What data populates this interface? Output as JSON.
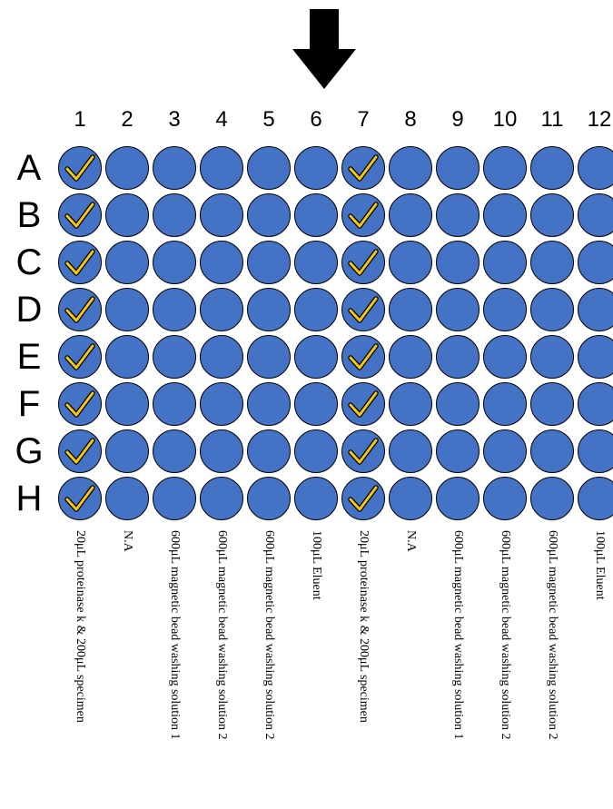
{
  "plate": {
    "columns": [
      "1",
      "2",
      "3",
      "4",
      "5",
      "6",
      "7",
      "8",
      "9",
      "10",
      "11",
      "12"
    ],
    "rows": [
      "A",
      "B",
      "C",
      "D",
      "E",
      "F",
      "G",
      "H"
    ],
    "checked_columns": [
      "1",
      "7"
    ],
    "column_labels": [
      "20μL proteinase k & 200μL specimen",
      "N.A",
      "600μL magnetic bead washing solution 1",
      "600μL magnetic bead washing solution 2",
      "600μL magnetic bead washing solution 2",
      "100μL Eluent",
      "20μL proteinase k & 200μL specimen",
      "N.A",
      "600μL magnetic bead washing solution 1",
      "600μL magnetic bead washing solution 2",
      "600μL magnetic bead washing solution 2",
      "100μL Eluent"
    ]
  },
  "icons": {
    "arrow": "arrow-down-icon",
    "check": "checkmark-icon"
  },
  "colors": {
    "well_fill": "#4472C4",
    "well_border": "#000000",
    "check": "#F5C518",
    "arrow": "#000000"
  }
}
